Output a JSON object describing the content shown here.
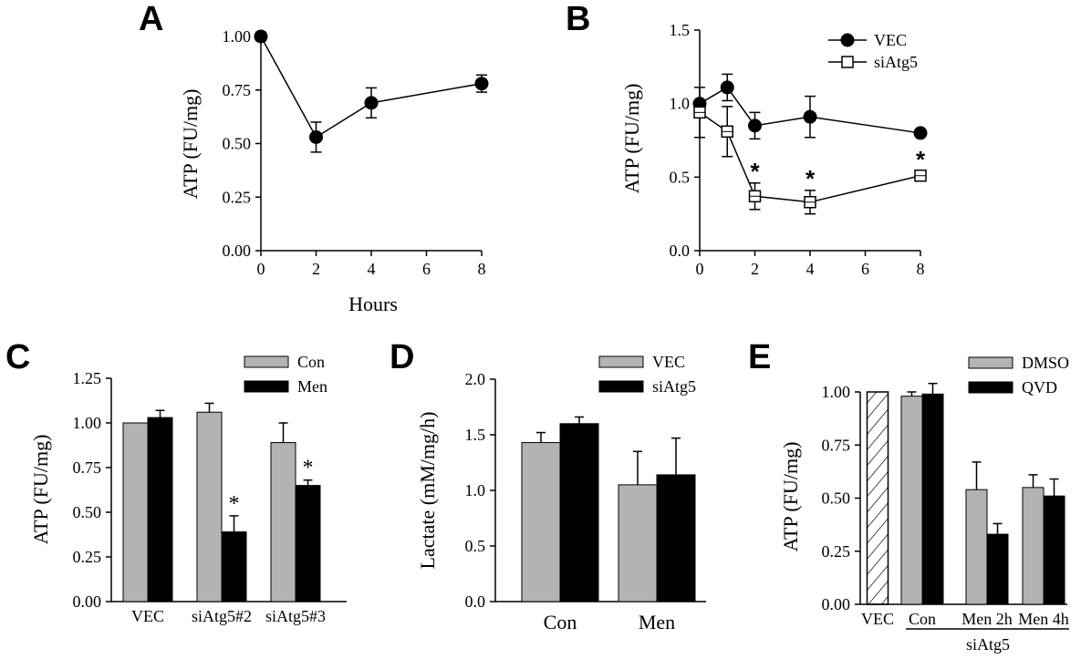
{
  "chart_data": [
    {
      "panel": "A",
      "type": "line",
      "ylabel": "ATP (FU/mg)",
      "xlabel": "Hours",
      "xlim": [
        0,
        8
      ],
      "ylim": [
        0,
        1
      ],
      "x_ticks": [
        "0",
        "2",
        "4",
        "6",
        "8"
      ],
      "y_ticks": [
        "0.00",
        "0.25",
        "0.50",
        "0.75",
        "1.00"
      ],
      "series": [
        {
          "x": [
            0,
            2,
            4,
            8
          ],
          "values": [
            1.0,
            0.53,
            0.69,
            0.78
          ],
          "errors": [
            0.02,
            0.07,
            0.07,
            0.04
          ],
          "marker": "filled-circle"
        }
      ]
    },
    {
      "panel": "B",
      "type": "line",
      "ylabel": "ATP (FU/mg)",
      "xlabel": "",
      "xlim": [
        0,
        8
      ],
      "ylim": [
        0,
        1.5
      ],
      "x_ticks": [
        "0",
        "2",
        "4",
        "6",
        "8"
      ],
      "y_ticks": [
        "0.0",
        "0.5",
        "1.0",
        "1.5"
      ],
      "legend_position": "top-right",
      "series": [
        {
          "name": "VEC",
          "x": [
            0,
            1,
            2,
            4,
            8
          ],
          "values": [
            1.0,
            1.11,
            0.85,
            0.91,
            0.8
          ],
          "errors": [
            0.0,
            0.09,
            0.09,
            0.14,
            0.02
          ],
          "marker": "filled-circle"
        },
        {
          "name": "siAtg5",
          "x": [
            0,
            1,
            2,
            4,
            8
          ],
          "values": [
            0.94,
            0.81,
            0.37,
            0.33,
            0.51
          ],
          "errors": [
            0.17,
            0.17,
            0.09,
            0.08,
            0.03
          ],
          "marker": "open-square"
        }
      ],
      "annotations": [
        {
          "text": "*",
          "x": 2
        },
        {
          "text": "*",
          "x": 4
        },
        {
          "text": "*",
          "x": 8
        }
      ]
    },
    {
      "panel": "C",
      "type": "bar",
      "ylabel": "ATP (FU/mg)",
      "xlabel": "",
      "ylim": [
        0,
        1.25
      ],
      "y_ticks": [
        "0.00",
        "0.25",
        "0.50",
        "0.75",
        "1.00",
        "1.25"
      ],
      "categories": [
        "VEC",
        "siAtg5#2",
        "siAtg5#3"
      ],
      "legend_position": "top-right",
      "series": [
        {
          "name": "Con",
          "values": [
            1.0,
            1.06,
            0.89
          ],
          "errors": [
            0,
            0.05,
            0.11
          ],
          "color": "#b3b3b3"
        },
        {
          "name": "Men",
          "values": [
            1.03,
            0.39,
            0.65
          ],
          "errors": [
            0.04,
            0.09,
            0.03
          ],
          "color": "#000000"
        }
      ],
      "annotations": [
        {
          "text": "*",
          "category": "siAtg5#2",
          "series": "Men"
        },
        {
          "text": "*",
          "category": "siAtg5#3",
          "series": "Men"
        }
      ]
    },
    {
      "panel": "D",
      "type": "bar",
      "ylabel": "Lactate (mM/mg/h)",
      "xlabel": "",
      "ylim": [
        0,
        2
      ],
      "y_ticks": [
        "0.0",
        "0.5",
        "1.0",
        "1.5",
        "2.0"
      ],
      "categories": [
        "Con",
        "Men"
      ],
      "legend_position": "top-right",
      "series": [
        {
          "name": "VEC",
          "values": [
            1.43,
            1.05
          ],
          "errors": [
            0.09,
            0.3
          ],
          "color": "#b3b3b3"
        },
        {
          "name": "siAtg5",
          "values": [
            1.6,
            1.14
          ],
          "errors": [
            0.06,
            0.33
          ],
          "color": "#000000"
        }
      ]
    },
    {
      "panel": "E",
      "type": "bar",
      "ylabel": "ATP (FU/mg)",
      "xlabel": "",
      "ylim": [
        0,
        1
      ],
      "y_ticks": [
        "0.00",
        "0.25",
        "0.50",
        "0.75",
        "1.00"
      ],
      "categories": [
        "VEC",
        "Con",
        "Men 2h",
        "Men 4h"
      ],
      "group_label": "siAtg5",
      "legend_position": "top-right",
      "hatched_bar": {
        "category": "VEC",
        "value": 1.0
      },
      "series": [
        {
          "name": "DMSO",
          "values": [
            null,
            0.98,
            0.54,
            0.55
          ],
          "errors": [
            null,
            0.02,
            0.13,
            0.06
          ],
          "color": "#b3b3b3"
        },
        {
          "name": "QVD",
          "values": [
            null,
            0.99,
            0.33,
            0.51
          ],
          "errors": [
            null,
            0.05,
            0.05,
            0.08
          ],
          "color": "#000000"
        }
      ]
    }
  ]
}
